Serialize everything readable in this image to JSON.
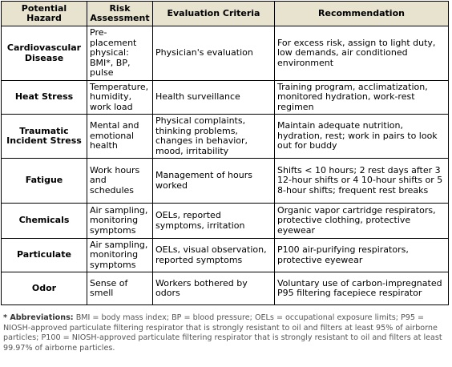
{
  "header": {
    "columns": [
      "Potential Hazard",
      "Risk Assessment",
      "Evaluation Criteria",
      "Recommendation"
    ]
  },
  "table": {
    "rows": [
      [
        "Cardiovascular Disease",
        "Pre-placement physical: BMI*, BP, pulse",
        "Physician's evaluation",
        "For excess risk, assign to light duty, low demands, air conditioned environment"
      ],
      [
        "Heat Stress",
        "Temperature, humidity, work load",
        "Health surveillance",
        "Training program, acclimatization, monitored hydration, work-rest regimen"
      ],
      [
        "Traumatic Incident Stress",
        "Mental and emotional health",
        "Physical complaints, thinking problems, changes in behavior, mood, irritability",
        "Maintain adequate nutrition, hydration, rest; work in pairs to look out for buddy"
      ],
      [
        "Fatigue",
        "Work hours and schedules",
        "Management of hours worked",
        "Shifts < 10 hours; 2 rest days after 3 12-hour shifts or 4 10-hour shifts or 5 8-hour shifts; frequent rest breaks"
      ],
      [
        "Chemicals",
        "Air sampling, monitoring symptoms",
        "OELs, reported symptoms, irritation",
        "Organic vapor cartridge respirators, protective clothing, protective eyewear"
      ],
      [
        "Particulate",
        "Air sampling, monitoring symptoms",
        "OELs, visual observation, reported symptoms",
        "P100 air-purifying respirators, protective eyewear"
      ],
      [
        "Odor",
        "Sense of smell",
        "Workers bothered by odors",
        "Voluntary use of carbon-impregnated P95 filtering facepiece respirator"
      ]
    ]
  },
  "footnote": {
    "label": "* Abbreviations:",
    "text": "BMI = body mass index; BP = blood pressure; OELs = occupational exposure limits; P95 = NIOSH-approved particulate filtering respirator that is strongly resistant to oil and filters at least 95% of airborne particles; P100 = NIOSH-approved particulate filtering respirator that is strongly resistant to oil and filters at least 99.97% of airborne particles."
  }
}
